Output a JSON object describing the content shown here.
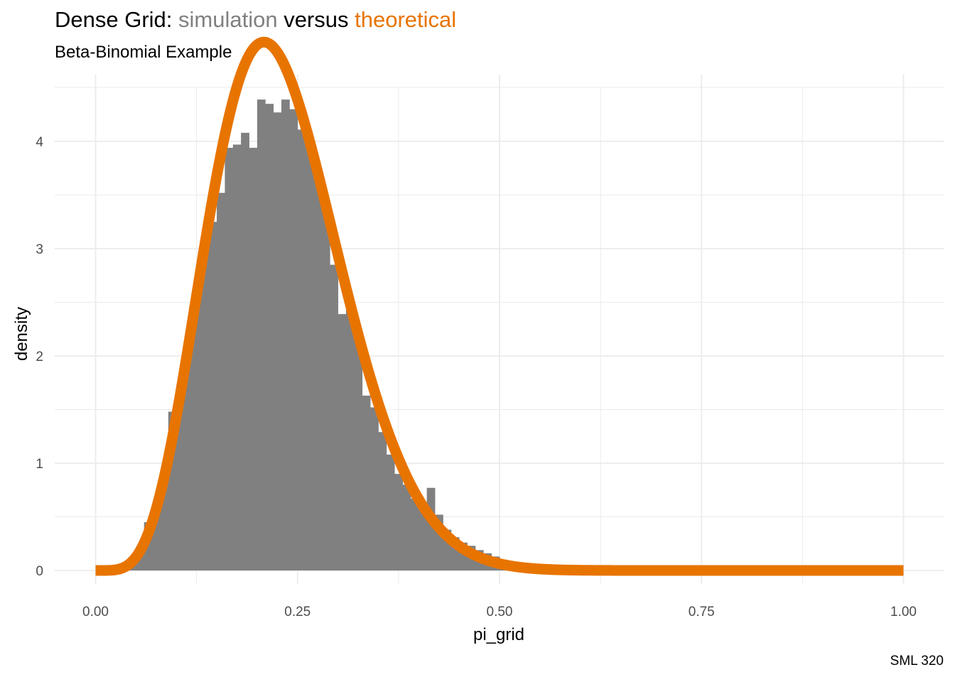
{
  "title": {
    "part1": "Dense Grid: ",
    "part2": "simulation",
    "part3": " versus ",
    "part4": "theoretical"
  },
  "subtitle": "Beta-Binomial Example",
  "caption": "SML 320",
  "colors": {
    "simulation": "#808080",
    "theoretical": "#E87400",
    "grid": "#ebebeb",
    "text": "#000000",
    "tick_text": "#4d4d4d"
  },
  "chart_data": {
    "type": "histogram+line",
    "xlabel": "pi_grid",
    "ylabel": "density",
    "xlim": [
      0,
      1
    ],
    "ylim": [
      0,
      4.45
    ],
    "x_ticks": [
      0,
      0.25,
      0.5,
      0.75,
      1
    ],
    "x_tick_labels": [
      "0.00",
      "0.25",
      "0.50",
      "0.75",
      "1.00"
    ],
    "y_ticks": [
      0,
      1,
      2,
      3,
      4
    ],
    "y_tick_labels": [
      "0",
      "1",
      "2",
      "3",
      "4"
    ],
    "grid": true,
    "histogram": {
      "series": "simulation",
      "bin_width": 0.01,
      "bin_starts": [
        0.04,
        0.05,
        0.06,
        0.07,
        0.08,
        0.09,
        0.1,
        0.11,
        0.12,
        0.13,
        0.14,
        0.15,
        0.16,
        0.17,
        0.18,
        0.19,
        0.2,
        0.21,
        0.22,
        0.23,
        0.24,
        0.25,
        0.26,
        0.27,
        0.28,
        0.29,
        0.3,
        0.31,
        0.32,
        0.33,
        0.34,
        0.35,
        0.36,
        0.37,
        0.38,
        0.39,
        0.4,
        0.41,
        0.42,
        0.43,
        0.44,
        0.45,
        0.46,
        0.47,
        0.48,
        0.49,
        0.5,
        0.51,
        0.52,
        0.53,
        0.54,
        0.55,
        0.56,
        0.57,
        0.58,
        0.59,
        0.6,
        0.61,
        0.62,
        0.63,
        0.64,
        0.65,
        0.66,
        0.67
      ],
      "densities": [
        0.12,
        0.22,
        0.45,
        0.62,
        0.92,
        1.48,
        1.72,
        2.12,
        2.53,
        3.02,
        3.25,
        3.52,
        3.94,
        3.97,
        4.08,
        3.94,
        4.39,
        4.35,
        4.27,
        4.39,
        4.3,
        4.11,
        3.95,
        3.75,
        3.35,
        2.85,
        2.39,
        2.48,
        2.18,
        1.63,
        1.52,
        1.29,
        1.08,
        0.9,
        0.8,
        0.67,
        0.56,
        0.77,
        0.52,
        0.38,
        0.31,
        0.26,
        0.23,
        0.19,
        0.16,
        0.13,
        0.1,
        0.08,
        0.06,
        0.045,
        0.035,
        0.03,
        0.025,
        0.02,
        0.015,
        0.012,
        0.01,
        0.008,
        0.006,
        0.005,
        0.004,
        0.003,
        0.002,
        0.001
      ]
    },
    "curve": {
      "series": "theoretical",
      "distribution": "beta",
      "alpha": 6,
      "beta": 20,
      "x_range": [
        0,
        1
      ]
    }
  }
}
